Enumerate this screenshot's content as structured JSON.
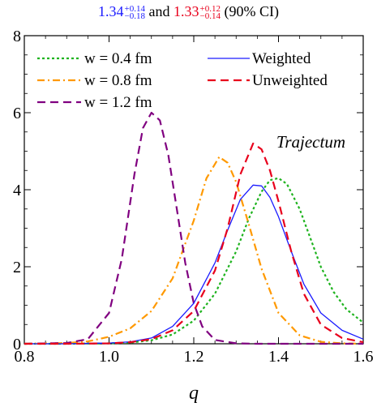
{
  "header": {
    "weighted_value": "1.34",
    "weighted_plus": "+0.14",
    "weighted_minus": "−0.18",
    "joiner": "and",
    "unweighted_value": "1.33",
    "unweighted_plus": "+0.12",
    "unweighted_minus": "−0.14",
    "ci_note": "(90% CI)"
  },
  "chart_data": {
    "type": "line",
    "xlabel": "q",
    "ylabel": "",
    "xlim": [
      0.8,
      1.6
    ],
    "ylim": [
      0,
      8
    ],
    "x_ticks": [
      "0.8",
      "1.0",
      "1.2",
      "1.4",
      "1.6"
    ],
    "y_ticks": [
      "0",
      "2",
      "4",
      "6",
      "8"
    ],
    "grid": false,
    "annotation": "Trajectum",
    "legend_left": [
      {
        "label": "w = 0.4 fm",
        "color": "#1eb31e",
        "dash": "dotted"
      },
      {
        "label": "w = 0.8 fm",
        "color": "#ff9900",
        "dash": "dashdot"
      },
      {
        "label": "w = 1.2 fm",
        "color": "#800080",
        "dash": "dashed"
      }
    ],
    "legend_right": [
      {
        "label": "Weighted",
        "color": "#1a1aff",
        "dash": "solid"
      },
      {
        "label": "Unweighted",
        "color": "#e8001c",
        "dash": "dashed"
      }
    ],
    "series": [
      {
        "name": "w = 0.4 fm",
        "color": "#1eb31e",
        "dash": "dotted",
        "x": [
          0.8,
          0.9,
          1.0,
          1.05,
          1.1,
          1.15,
          1.2,
          1.25,
          1.3,
          1.33,
          1.36,
          1.38,
          1.4,
          1.42,
          1.45,
          1.48,
          1.5,
          1.53,
          1.56,
          1.6
        ],
        "y": [
          0.0,
          0.0,
          0.01,
          0.03,
          0.09,
          0.24,
          0.6,
          1.3,
          2.4,
          3.25,
          3.95,
          4.25,
          4.3,
          4.15,
          3.5,
          2.6,
          2.0,
          1.35,
          0.9,
          0.55
        ]
      },
      {
        "name": "w = 0.8 fm",
        "color": "#ff9900",
        "dash": "dashdot",
        "x": [
          0.8,
          0.9,
          0.95,
          1.0,
          1.05,
          1.1,
          1.15,
          1.2,
          1.23,
          1.26,
          1.28,
          1.3,
          1.33,
          1.36,
          1.4,
          1.45,
          1.5,
          1.55,
          1.6
        ],
        "y": [
          0.0,
          0.02,
          0.06,
          0.18,
          0.4,
          0.85,
          1.7,
          3.2,
          4.3,
          4.85,
          4.7,
          4.2,
          3.1,
          1.95,
          0.8,
          0.22,
          0.05,
          0.01,
          0.0
        ]
      },
      {
        "name": "w = 1.2 fm",
        "color": "#800080",
        "dash": "dashed",
        "x": [
          0.8,
          0.9,
          0.95,
          1.0,
          1.03,
          1.06,
          1.08,
          1.1,
          1.12,
          1.14,
          1.16,
          1.18,
          1.2,
          1.22,
          1.25,
          1.3,
          1.35,
          1.4,
          1.6
        ],
        "y": [
          0.0,
          0.02,
          0.12,
          0.8,
          2.2,
          4.4,
          5.6,
          6.0,
          5.8,
          4.9,
          3.5,
          2.1,
          1.05,
          0.45,
          0.1,
          0.01,
          0.0,
          0.0,
          0.0
        ]
      },
      {
        "name": "Weighted",
        "color": "#1a1aff",
        "dash": "solid",
        "x": [
          0.8,
          0.9,
          1.0,
          1.05,
          1.1,
          1.15,
          1.2,
          1.25,
          1.28,
          1.31,
          1.34,
          1.36,
          1.38,
          1.4,
          1.43,
          1.46,
          1.5,
          1.55,
          1.6
        ],
        "y": [
          0.0,
          0.0,
          0.02,
          0.05,
          0.15,
          0.45,
          1.05,
          2.1,
          2.95,
          3.75,
          4.12,
          4.1,
          3.8,
          3.3,
          2.4,
          1.55,
          0.8,
          0.35,
          0.12
        ]
      },
      {
        "name": "Unweighted",
        "color": "#e8001c",
        "dash": "dashed",
        "x": [
          0.8,
          0.9,
          1.0,
          1.05,
          1.1,
          1.15,
          1.2,
          1.25,
          1.28,
          1.31,
          1.34,
          1.36,
          1.38,
          1.4,
          1.43,
          1.46,
          1.5,
          1.55,
          1.6
        ],
        "y": [
          0.0,
          0.0,
          0.01,
          0.04,
          0.12,
          0.35,
          0.85,
          1.9,
          3.0,
          4.4,
          5.2,
          5.05,
          4.5,
          3.7,
          2.4,
          1.3,
          0.5,
          0.15,
          0.04
        ]
      }
    ]
  }
}
